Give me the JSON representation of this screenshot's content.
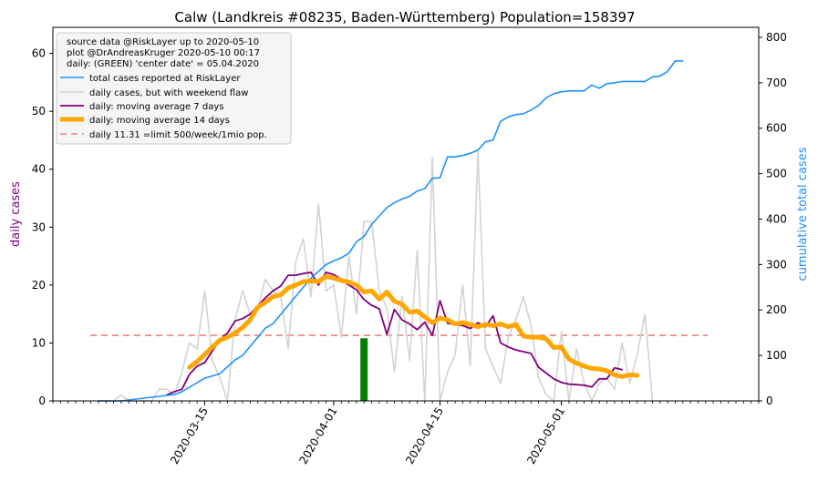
{
  "chart_data": {
    "type": "line",
    "title": "Calw (Landkreis #08235, Baden-Württemberg) Population=158397",
    "ylabel_left": "daily cases",
    "ylabel_right": "cumulative total cases",
    "ylim_left": [
      0,
      64.5
    ],
    "ylim_right": [
      0,
      822
    ],
    "yticks_left": [
      "0",
      "10",
      "20",
      "30",
      "40",
      "50",
      "60"
    ],
    "yticks_right": [
      "0",
      "100",
      "200",
      "300",
      "400",
      "500",
      "600",
      "700",
      "800"
    ],
    "xlim": [
      "2020-02-24",
      "2020-05-27"
    ],
    "xtick_labels": [
      "2020-03-15",
      "2020-04-01",
      "2020-04-15",
      "2020-05-01"
    ],
    "grid": false,
    "legend_position": "upper left",
    "legend_header": [
      "source data @RiskLayer up to 2020-05-10",
      "plot @DrAndreasKruger 2020-05-10 00:17",
      "daily: (GREEN) 'center date' = 05.04.2020"
    ],
    "colors": {
      "total": "#1e90ff",
      "daily": "#d3d3d3",
      "ma7": "#800080",
      "ma14": "#ffa500",
      "limit": "#f08080",
      "center": "#008000",
      "left_axis_label": "#800080",
      "right_axis_label": "#1e90ff"
    },
    "series": [
      {
        "name": "total cases reported at RiskLayer",
        "axis": "right",
        "start_date": "2020-03-01",
        "values": [
          0,
          0,
          0,
          0,
          2,
          4,
          6,
          8,
          10,
          12,
          14,
          20,
          30,
          40,
          50,
          55,
          60,
          75,
          90,
          100,
          120,
          140,
          160,
          170,
          190,
          210,
          230,
          250,
          270,
          285,
          300,
          308,
          315,
          325,
          350,
          362,
          388,
          407,
          425,
          436,
          444,
          450,
          462,
          467,
          490,
          491,
          537,
          537,
          540,
          545,
          552,
          570,
          574,
          615,
          625,
          630,
          632,
          640,
          650,
          667,
          676,
          680,
          682,
          682,
          682,
          695,
          688,
          698,
          700,
          703,
          703,
          703,
          703,
          713,
          715,
          725,
          748,
          748
        ]
      },
      {
        "name": "daily cases, but with weekend flaw",
        "axis": "left",
        "start_date": "2020-03-01",
        "values": [
          0,
          0,
          0,
          1,
          0,
          0,
          0,
          0,
          2,
          2,
          1,
          5,
          10,
          9,
          19,
          7,
          4,
          0,
          14,
          19,
          15,
          16,
          21,
          19,
          18,
          9,
          24,
          28,
          18,
          34,
          19,
          20,
          11,
          25,
          15,
          31,
          31,
          19,
          16,
          5,
          18,
          7,
          26,
          0,
          42,
          0,
          5,
          8,
          20,
          6,
          43,
          9,
          6,
          3,
          11,
          14,
          18,
          13,
          4,
          1,
          0,
          12,
          0,
          9,
          3,
          0,
          3,
          4,
          2,
          10,
          3,
          8,
          15,
          0
        ]
      },
      {
        "name": "daily: moving average 7 days",
        "axis": "left",
        "start_date": "2020-03-10",
        "values": [
          1,
          1.6,
          2,
          4.6,
          6,
          6.6,
          8.6,
          10.6,
          11.7,
          13.8,
          14.2,
          15,
          16.4,
          17.8,
          19,
          19.8,
          21.7,
          21.7,
          22,
          22.2,
          20,
          22.2,
          21.8,
          21,
          20,
          19.2,
          17.5,
          16.5,
          15.9,
          11.5,
          15.8,
          14,
          13.3,
          12.3,
          13.6,
          11.3,
          17.3,
          13.4,
          13.2,
          13,
          12.5,
          13.5,
          12.8,
          14.7,
          10,
          9.3,
          8.8,
          8.5,
          8.2,
          5.8,
          4.8,
          3.8,
          3.2,
          2.9,
          2.8,
          2.7,
          2.4,
          3.8,
          3.8,
          5.7,
          5.4
        ]
      },
      {
        "name": "daily: moving average 14 days",
        "axis": "left",
        "start_date": "2020-03-13",
        "values": [
          5.8,
          6.8,
          8,
          9.3,
          10.5,
          11,
          11.7,
          12.7,
          14,
          16.2,
          17,
          18,
          18.3,
          19.5,
          20,
          20.6,
          20.7,
          20.6,
          21.5,
          21.2,
          20.8,
          20.5,
          20,
          18.8,
          19,
          17.6,
          18.8,
          17.2,
          16.7,
          15.3,
          15.5,
          14.5,
          13.5,
          14.3,
          14,
          13.3,
          13.5,
          13.2,
          12.8,
          13.2,
          13,
          13.3,
          12.8,
          13.2,
          11.2,
          11,
          11,
          10.7,
          9.2,
          9.3,
          7.2,
          6.5,
          6,
          5.6,
          5.5,
          5.2,
          4.5,
          4.2,
          4.5,
          4.4
        ]
      }
    ],
    "limit_line": {
      "name": "daily 11.31 =limit 500/week/1mio pop.",
      "value": 11.31
    },
    "center_bar": {
      "date": "2020-04-05",
      "value": 10.8
    }
  }
}
